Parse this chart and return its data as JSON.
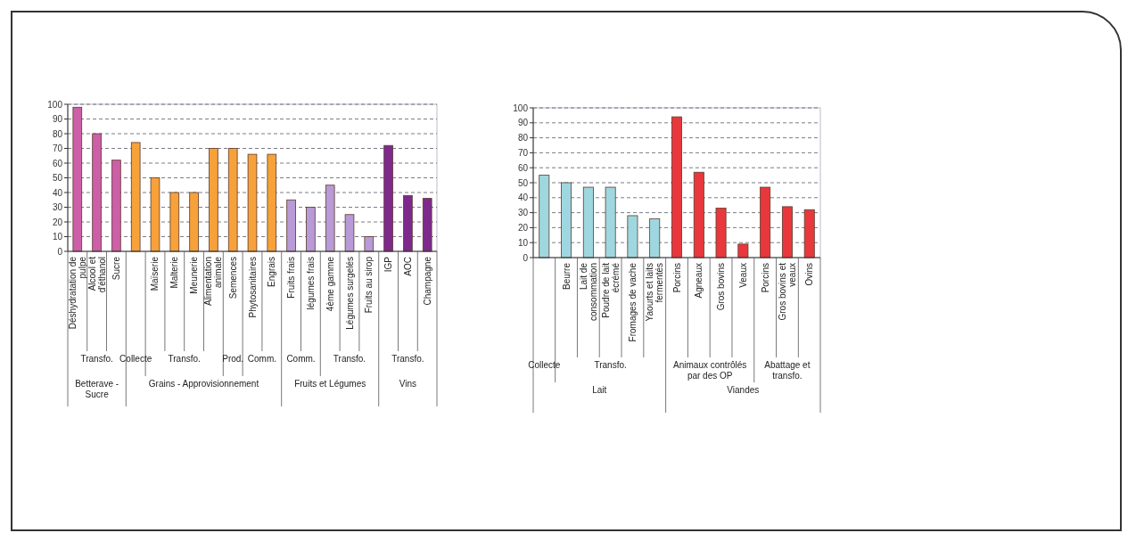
{
  "chart_data": [
    {
      "type": "bar",
      "categories": [
        "Déshydratation de pulpe",
        "Alcool et d'éthanol",
        "Sucre",
        null,
        "Maïserie",
        "Malterie",
        "Meunerie",
        "Alimentation animale",
        "Semences",
        "Phytosanitaires",
        "Engrais",
        "Fruits frais",
        "légumes frais",
        "4ème gamme",
        "Légumes surgelés",
        "Fruits au sirop",
        "IGP",
        "AOC",
        "Champagne"
      ],
      "values": [
        98,
        80,
        62,
        74,
        50,
        40,
        40,
        70,
        70,
        66,
        66,
        35,
        30,
        45,
        25,
        10,
        72,
        38,
        36
      ],
      "colors": [
        "#cc5fa8",
        "#cc5fa8",
        "#cc5fa8",
        "#f7a13a",
        "#f7a13a",
        "#f7a13a",
        "#f7a13a",
        "#f7a13a",
        "#f7a13a",
        "#f7a13a",
        "#f7a13a",
        "#b79ad6",
        "#b79ad6",
        "#b79ad6",
        "#b79ad6",
        "#b79ad6",
        "#7d2a8c",
        "#7d2a8c",
        "#7d2a8c"
      ],
      "ylim": [
        0,
        100
      ],
      "yticks": [
        0,
        10,
        20,
        30,
        40,
        50,
        60,
        70,
        80,
        90,
        100
      ],
      "grid": "y",
      "annotations": [
        "Transfo.",
        "Collecte",
        "Transfo.",
        "Prod.",
        "Comm.",
        "Comm.",
        "Transfo.",
        "Transfo.",
        "Betterave - Sucre",
        "Grains - Approvisionnement",
        "Fruits et Légumes",
        "Vins"
      ]
    },
    {
      "type": "bar",
      "categories": [
        null,
        "Beurre",
        "Lait de consommation",
        "Poudre de lait écrémé",
        "Fromages de vache",
        "Yaourts et laits fermentés",
        "Porcins",
        "Agneaux",
        "Gros bovins",
        "Veaux",
        "Porcins",
        "Gros bovins et veaux",
        "Ovins"
      ],
      "values": [
        55,
        50,
        47,
        47,
        28,
        26,
        94,
        57,
        33,
        9,
        47,
        34,
        32
      ],
      "colors": [
        "#9fd7e0",
        "#9fd7e0",
        "#9fd7e0",
        "#9fd7e0",
        "#9fd7e0",
        "#9fd7e0",
        "#e8383d",
        "#e8383d",
        "#e8383d",
        "#e8383d",
        "#e8383d",
        "#e8383d",
        "#e8383d"
      ],
      "ylim": [
        0,
        100
      ],
      "yticks": [
        0,
        10,
        20,
        30,
        40,
        50,
        60,
        70,
        80,
        90,
        100
      ],
      "grid": "y",
      "annotations": [
        "Collecte",
        "Transfo.",
        "Animaux contrôlés par des OP",
        "Abattage et transfo.",
        "Lait",
        "Viandes"
      ]
    }
  ]
}
